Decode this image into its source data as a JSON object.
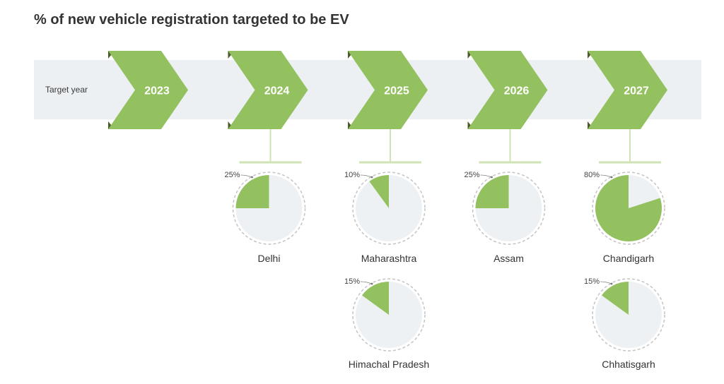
{
  "title": "% of new vehicle registration targeted to be EV",
  "row_label": "Target year",
  "colors": {
    "arrow": "#94c15f",
    "arrow_shadow": "#4a5a2a",
    "band": "#edf0f3",
    "slice": "#94c15f",
    "pie_bg": "#eef1f4",
    "connector": "#cfe3b4",
    "dashed_ring": "#c4c4c4"
  },
  "chart_data": {
    "type": "pie",
    "title": "% of new vehicle registration targeted to be EV",
    "years": [
      "2023",
      "2024",
      "2025",
      "2026",
      "2027"
    ],
    "targets": [
      {
        "state": "Delhi",
        "year": "2024",
        "value": 25,
        "label": "25%"
      },
      {
        "state": "Maharashtra",
        "year": "2025",
        "value": 10,
        "label": "10%"
      },
      {
        "state": "Himachal Pradesh",
        "year": "2025",
        "value": 15,
        "label": "15%"
      },
      {
        "state": "Assam",
        "year": "2026",
        "value": 25,
        "label": "25%"
      },
      {
        "state": "Chandigarh",
        "year": "2027",
        "value": 80,
        "label": "80%"
      },
      {
        "state": "Chhatisgarh",
        "year": "2027",
        "value": 15,
        "label": "15%"
      }
    ]
  }
}
